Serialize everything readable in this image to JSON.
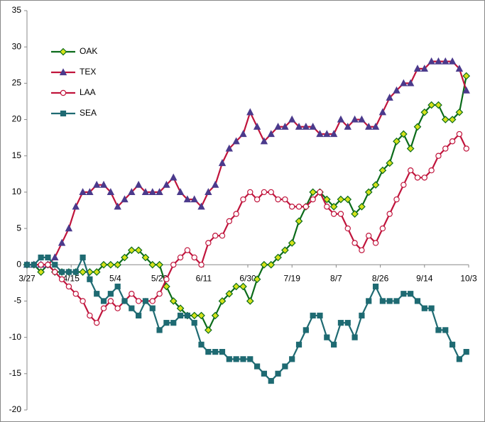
{
  "chart_data": {
    "type": "line",
    "x": [
      0,
      3,
      6,
      9,
      12,
      15,
      18,
      21,
      24,
      27,
      30,
      33,
      36,
      39,
      42,
      45,
      48,
      51,
      54,
      57,
      60,
      63,
      66,
      69,
      72,
      75,
      78,
      81,
      84,
      87,
      90,
      93,
      96,
      99,
      102,
      105,
      108,
      111,
      114,
      117,
      120,
      123,
      126,
      129,
      132,
      135,
      138,
      141,
      144,
      147,
      150,
      153,
      156,
      159,
      162,
      165,
      168,
      171,
      174,
      177,
      180,
      183,
      186,
      189
    ],
    "xlim": [
      0,
      190
    ],
    "xticks": [
      {
        "value": 0,
        "label": "3/27"
      },
      {
        "value": 19,
        "label": "4/15"
      },
      {
        "value": 38,
        "label": "5/4"
      },
      {
        "value": 57,
        "label": "5/23"
      },
      {
        "value": 76,
        "label": "6/11"
      },
      {
        "value": 95,
        "label": "6/30"
      },
      {
        "value": 114,
        "label": "7/19"
      },
      {
        "value": 133,
        "label": "8/7"
      },
      {
        "value": 152,
        "label": "8/26"
      },
      {
        "value": 171,
        "label": "9/14"
      },
      {
        "value": 190,
        "label": "10/3"
      }
    ],
    "ylim": [
      -20,
      35
    ],
    "yticks": [
      -20,
      -15,
      -10,
      -5,
      0,
      5,
      10,
      15,
      20,
      25,
      30,
      35
    ],
    "legend": "upper left",
    "series": [
      {
        "name": "OAK",
        "color": "#0b6b1a",
        "marker": "diamond",
        "marker_fill": "#d6e21a",
        "values": [
          0,
          0,
          -1,
          0,
          -1,
          -1,
          -1,
          -1,
          -1,
          -1,
          -1,
          0,
          0,
          0,
          1,
          2,
          2,
          1,
          0,
          0,
          -3,
          -5,
          -6,
          -7,
          -7,
          -7,
          -9,
          -7,
          -5,
          -4,
          -3,
          -3,
          -5,
          -2,
          0,
          0,
          1,
          2,
          3,
          6,
          8,
          10,
          10,
          9,
          8,
          9,
          9,
          7,
          8,
          10,
          11,
          13,
          14,
          17,
          18,
          16,
          19,
          21,
          22,
          22,
          20,
          20,
          21,
          26
        ]
      },
      {
        "name": "TEX",
        "color": "#c0143c",
        "marker": "triangle",
        "marker_fill": "#4b3a8c",
        "values": [
          0,
          0,
          0,
          0,
          1,
          3,
          5,
          8,
          10,
          10,
          11,
          11,
          10,
          8,
          9,
          10,
          11,
          10,
          10,
          10,
          11,
          12,
          10,
          9,
          9,
          8,
          10,
          11,
          14,
          16,
          17,
          18,
          21,
          19,
          17,
          18,
          19,
          19,
          20,
          19,
          19,
          19,
          18,
          18,
          18,
          20,
          19,
          20,
          20,
          19,
          19,
          21,
          23,
          24,
          25,
          25,
          27,
          27,
          28,
          28,
          28,
          28,
          27,
          24
        ]
      },
      {
        "name": "LAA",
        "color": "#c0143c",
        "marker": "circle",
        "marker_fill": "#ffffff",
        "values": [
          0,
          0,
          0,
          0,
          -1,
          -2,
          -3,
          -4,
          -5,
          -7,
          -8,
          -6,
          -5,
          -6,
          -5,
          -4,
          -5,
          -5,
          -5,
          -4,
          -2,
          0,
          1,
          2,
          1,
          0,
          3,
          4,
          4,
          6,
          7,
          9,
          10,
          9,
          10,
          10,
          9,
          9,
          8,
          8,
          8,
          9,
          10,
          8,
          7,
          7,
          5,
          3,
          2,
          4,
          3,
          5,
          7,
          9,
          11,
          13,
          12,
          12,
          13,
          15,
          16,
          17,
          18,
          16
        ]
      },
      {
        "name": "SEA",
        "color": "#1e6a72",
        "marker": "square",
        "marker_fill": "#1e6a72",
        "values": [
          0,
          0,
          1,
          1,
          0,
          -1,
          -1,
          -1,
          1,
          -2,
          -4,
          -5,
          -4,
          -3,
          -5,
          -6,
          -7,
          -5,
          -6,
          -9,
          -8,
          -8,
          -7,
          -7,
          -8,
          -11,
          -12,
          -12,
          -12,
          -13,
          -13,
          -13,
          -13,
          -14,
          -15,
          -16,
          -15,
          -14,
          -13,
          -11,
          -9,
          -7,
          -7,
          -10,
          -11,
          -8,
          -8,
          -10,
          -7,
          -5,
          -3,
          -5,
          -5,
          -5,
          -4,
          -4,
          -5,
          -6,
          -6,
          -9,
          -9,
          -11,
          -13,
          -12
        ]
      }
    ]
  }
}
